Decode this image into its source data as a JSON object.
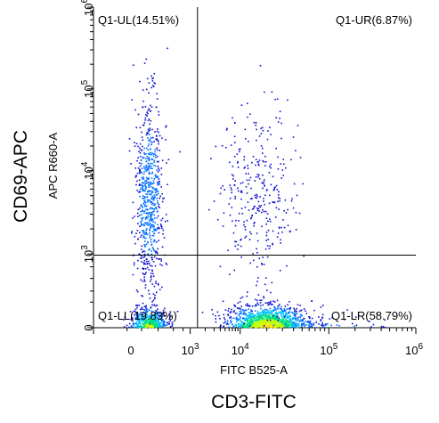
{
  "chart_data": {
    "type": "scatter",
    "subtype": "flow-cytometry-density-dot-plot",
    "x_axis": {
      "channel_label": "FITC B525-A",
      "marker_label": "CD3-FITC",
      "scale": "biexponential",
      "tick_labels": [
        "0",
        "10^3",
        "10^4",
        "10^5",
        "10^6"
      ]
    },
    "y_axis": {
      "channel_label": "APC R660-A",
      "marker_label": "CD69-APC",
      "scale": "biexponential",
      "tick_labels": [
        "0",
        "10^3",
        "10^4",
        "10^5",
        "10^6"
      ]
    },
    "quadrant_gate": {
      "x_threshold": 1400,
      "y_threshold": 900,
      "labels": {
        "UL": "Q1-UL(14.51%)",
        "UR": "Q1-UR(6.87%)",
        "LL": "Q1-LL(19.83%)",
        "LR": "Q1-LR(58.79%)"
      },
      "percentages": {
        "UL": 14.51,
        "UR": 6.87,
        "LL": 19.83,
        "LR": 58.79
      }
    },
    "populations": [
      {
        "quadrant": "LL",
        "x_center": 50,
        "y_center": 0
      },
      {
        "quadrant": "LR",
        "x_center": 20000,
        "y_center": 0
      },
      {
        "quadrant": "UL",
        "x_center": 50,
        "y_center": 5000
      },
      {
        "quadrant": "UR",
        "x_center": 15000,
        "y_center": 5000
      }
    ],
    "colormap": [
      "#1010d0",
      "#0070ff",
      "#00c0ff",
      "#00e080",
      "#c0ff00",
      "#ffe000"
    ],
    "grid": false,
    "legend": "none"
  }
}
